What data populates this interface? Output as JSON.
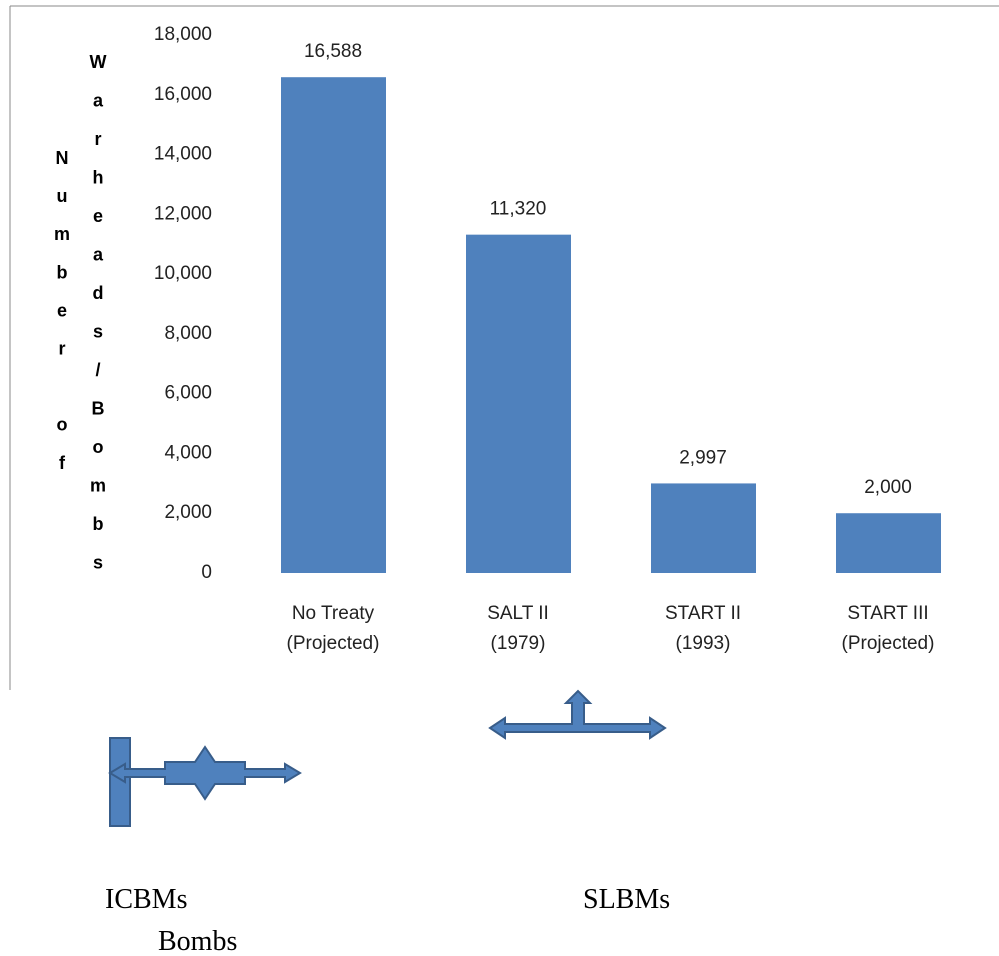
{
  "chart_data": {
    "type": "bar",
    "y_label": [
      "Number of",
      "Warheads/Bombs"
    ],
    "categories": [
      [
        "No Treaty",
        "(Projected)"
      ],
      [
        "SALT II",
        "(1979)"
      ],
      [
        "START II",
        "(1993)"
      ],
      [
        "START III",
        "(Projected)"
      ]
    ],
    "values": [
      16588,
      11320,
      2997,
      2000
    ],
    "value_labels": [
      "16,588",
      "11,320",
      "2,997",
      "2,000"
    ],
    "color": "#4f81bd",
    "ylim": [
      0,
      18000
    ],
    "yticks": [
      0,
      {
        "value": 2000,
        "label": "2,000"
      },
      {
        "value": 4000,
        "label": "4,000"
      },
      {
        "value": 6000,
        "label": "6,000"
      },
      {
        "value": 8000,
        "label": "8,000"
      },
      {
        "value": 10000,
        "label": "10,000"
      },
      {
        "value": 12000,
        "label": "12,000"
      },
      {
        "value": 14000,
        "label": "14,000"
      },
      {
        "value": 16000,
        "label": "16,000"
      },
      {
        "value": 18000,
        "label": "18,000"
      }
    ],
    "grid": false
  },
  "annotations": [
    "ICBMs",
    "SLBMs",
    "Bombs"
  ]
}
